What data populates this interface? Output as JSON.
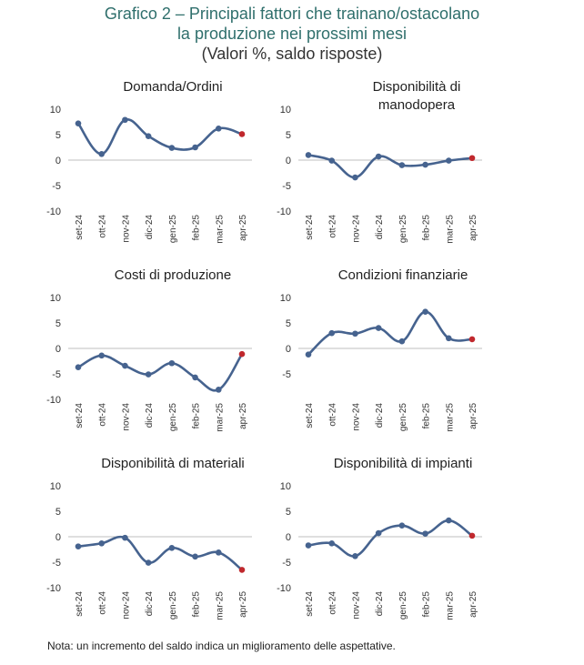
{
  "title": {
    "line1": "Grafico 2 – Principali fattori che trainano/ostacolano",
    "line2": "la produzione nei prossimi mesi",
    "line3": "(Valori %, saldo risposte)"
  },
  "footnote": "Nota: un incremento del saldo indica un miglioramento delle aspettative.",
  "colors": {
    "title": "#2f6f6c",
    "line": "#46638f",
    "marker": "#46638f",
    "last_marker": "#c0282d",
    "axis": "#bfbfbf"
  },
  "chart_data": [
    {
      "type": "line",
      "title": "Domanda/Ordini",
      "categories": [
        "set-24",
        "ott-24",
        "nov-24",
        "dic-24",
        "gen-25",
        "feb-25",
        "mar-25",
        "apr-25"
      ],
      "series": [
        {
          "values": [
            7.2,
            1.2,
            7.9,
            4.7,
            2.4,
            2.5,
            6.2,
            5.1
          ]
        }
      ],
      "yticks": [
        10,
        5,
        0,
        -5,
        -10
      ],
      "ylim": [
        -10,
        10
      ],
      "grid": false
    },
    {
      "type": "line",
      "title": "Disponibilità di manodopera",
      "categories": [
        "set-24",
        "ott-24",
        "nov-24",
        "dic-24",
        "gen-25",
        "feb-25",
        "mar-25",
        "apr-25"
      ],
      "series": [
        {
          "values": [
            1.0,
            -0.1,
            -3.4,
            0.7,
            -1.0,
            -0.9,
            -0.1,
            0.4
          ]
        }
      ],
      "yticks": [
        10,
        5,
        0,
        -5,
        -10
      ],
      "ylim": [
        -10,
        10
      ],
      "grid": false
    },
    {
      "type": "line",
      "title": "Costi di produzione",
      "categories": [
        "set-24",
        "ott-24",
        "nov-24",
        "dic-24",
        "gen-25",
        "feb-25",
        "mar-25",
        "apr-25"
      ],
      "series": [
        {
          "values": [
            -3.7,
            -1.4,
            -3.4,
            -5.1,
            -2.9,
            -5.7,
            -8.1,
            -1.1
          ]
        }
      ],
      "yticks": [
        10,
        5,
        0,
        -5,
        -10
      ],
      "ylim": [
        -10,
        10
      ],
      "grid": false
    },
    {
      "type": "line",
      "title": "Condizioni finanziarie",
      "categories": [
        "set-24",
        "ott-24",
        "nov-24",
        "dic-24",
        "gen-25",
        "feb-25",
        "mar-25",
        "apr-25"
      ],
      "series": [
        {
          "values": [
            -1.2,
            3.0,
            2.9,
            4.0,
            1.4,
            7.2,
            2.0,
            1.8
          ]
        }
      ],
      "yticks": [
        10,
        5,
        0,
        -5
      ],
      "ylim": [
        -10,
        10
      ],
      "grid": false
    },
    {
      "type": "line",
      "title": "Disponibilità di materiali",
      "categories": [
        "set-24",
        "ott-24",
        "nov-24",
        "dic-24",
        "gen-25",
        "feb-25",
        "mar-25",
        "apr-25"
      ],
      "series": [
        {
          "values": [
            -1.9,
            -1.3,
            -0.2,
            -5.1,
            -2.2,
            -3.9,
            -3.1,
            -6.5
          ]
        }
      ],
      "yticks": [
        10,
        5,
        0,
        -5,
        -10
      ],
      "ylim": [
        -10,
        10
      ],
      "grid": false
    },
    {
      "type": "line",
      "title": "Disponibilità di impianti",
      "categories": [
        "set-24",
        "ott-24",
        "nov-24",
        "dic-24",
        "gen-25",
        "feb-25",
        "mar-25",
        "apr-25"
      ],
      "series": [
        {
          "values": [
            -1.7,
            -1.3,
            -3.8,
            0.7,
            2.2,
            0.6,
            3.2,
            0.2
          ]
        }
      ],
      "yticks": [
        10,
        5,
        0,
        -5,
        -10
      ],
      "ylim": [
        -10,
        10
      ],
      "grid": false
    }
  ]
}
